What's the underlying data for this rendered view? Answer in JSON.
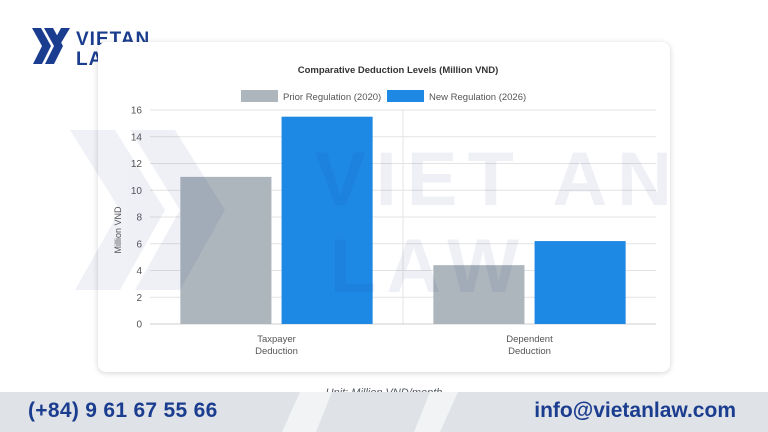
{
  "brand": {
    "logo_line1": "VIETAN",
    "logo_line2": "LAW",
    "watermark_line1": "VIET AN",
    "watermark_line2": "LAW",
    "colors": {
      "navy": "#1b3d8f",
      "footer_grey": "#dfe2e6"
    }
  },
  "chart_data": {
    "type": "bar",
    "title": "Comparative Deduction Levels (Million VND)",
    "xlabel": "",
    "ylabel": "Million VND",
    "ylim": [
      0,
      16
    ],
    "yticks": [
      0,
      2,
      4,
      6,
      8,
      10,
      12,
      14,
      16
    ],
    "categories": [
      [
        "Taxpayer",
        "Deduction"
      ],
      [
        "Dependent",
        "Deduction"
      ]
    ],
    "series": [
      {
        "name": "Prior Regulation (2020)",
        "color": "#adb5bd",
        "values": [
          11,
          4.4
        ]
      },
      {
        "name": "New Regulation (2026)",
        "color": "#1e88e5",
        "values": [
          15.5,
          6.2
        ]
      }
    ],
    "legend_position": "top-center",
    "grid": true
  },
  "unit_note": "Unit: Million VND/month",
  "footer": {
    "phone": "(+84) 9 61 67 55 66",
    "email": "info@vietanlaw.com"
  }
}
